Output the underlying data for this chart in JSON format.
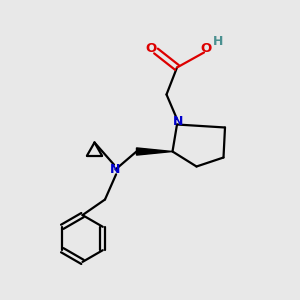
{
  "bg_color": "#e8e8e8",
  "atom_colors": {
    "C": "#000000",
    "N": "#0000cc",
    "O": "#dd0000",
    "H": "#4a9090"
  },
  "figsize": [
    3.0,
    3.0
  ],
  "dpi": 100
}
